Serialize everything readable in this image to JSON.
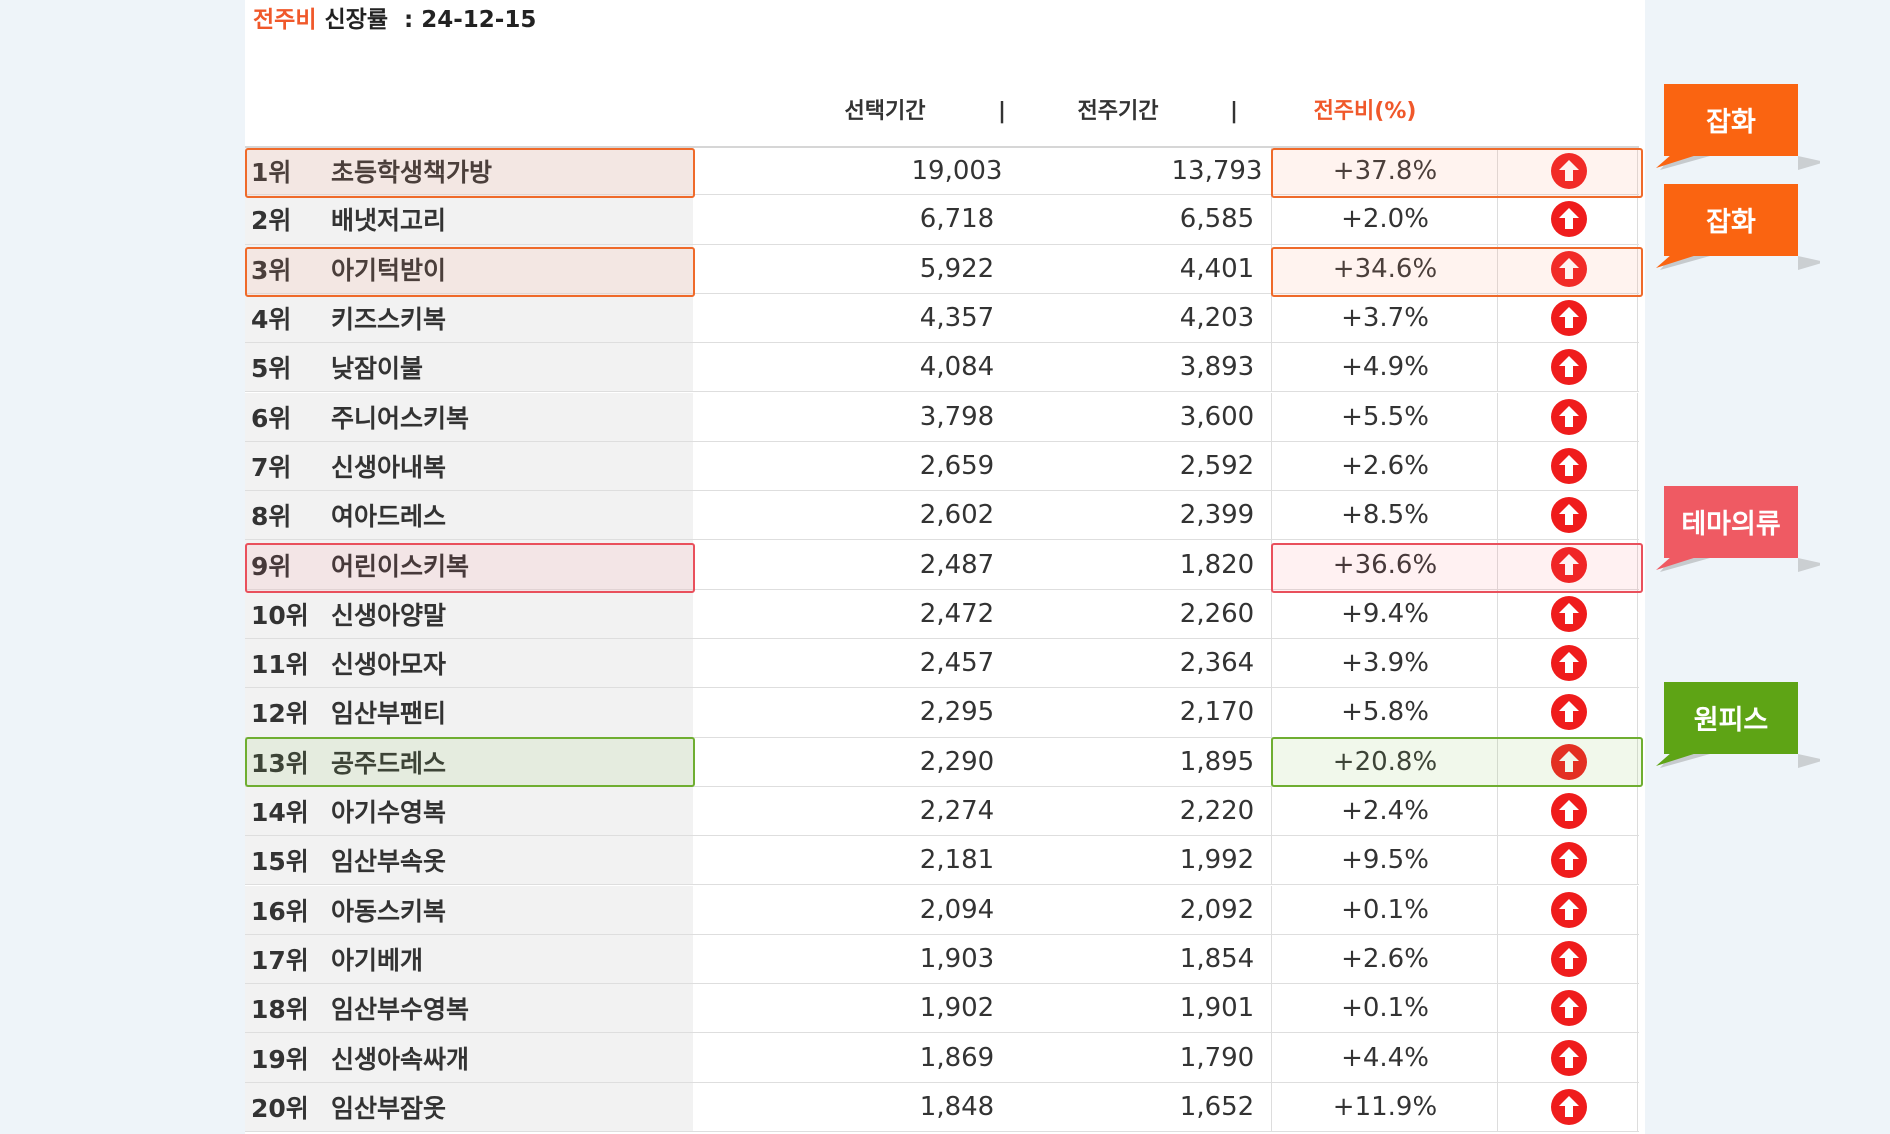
{
  "title": {
    "prefix": "전주비",
    "middle": "신장률",
    "separator": ":",
    "date": "24-12-15"
  },
  "headers": {
    "selected": "선택기간",
    "previous": "전주기간",
    "ratio": "전주비(%)",
    "divider": "|"
  },
  "colors": {
    "accent": "#f0582a",
    "up_icon": "#ef1c1c",
    "tag_orange": "#fa6411",
    "tag_pink": "#ef5a63",
    "tag_green": "#5ea415"
  },
  "rows": [
    {
      "rank": "1위",
      "name": "초등학생책가방",
      "selected": "19,003",
      "previous": "13,793",
      "ratio": "+37.8%",
      "icon": "up-arrow-icon"
    },
    {
      "rank": "2위",
      "name": "배냇저고리",
      "selected": "6,718",
      "previous": "6,585",
      "ratio": "+2.0%",
      "icon": "up-arrow-icon"
    },
    {
      "rank": "3위",
      "name": "아기턱받이",
      "selected": "5,922",
      "previous": "4,401",
      "ratio": "+34.6%",
      "icon": "up-arrow-icon"
    },
    {
      "rank": "4위",
      "name": "키즈스키복",
      "selected": "4,357",
      "previous": "4,203",
      "ratio": "+3.7%",
      "icon": "up-arrow-icon"
    },
    {
      "rank": "5위",
      "name": "낮잠이불",
      "selected": "4,084",
      "previous": "3,893",
      "ratio": "+4.9%",
      "icon": "up-arrow-icon"
    },
    {
      "rank": "6위",
      "name": "주니어스키복",
      "selected": "3,798",
      "previous": "3,600",
      "ratio": "+5.5%",
      "icon": "up-arrow-icon"
    },
    {
      "rank": "7위",
      "name": "신생아내복",
      "selected": "2,659",
      "previous": "2,592",
      "ratio": "+2.6%",
      "icon": "up-arrow-icon"
    },
    {
      "rank": "8위",
      "name": "여아드레스",
      "selected": "2,602",
      "previous": "2,399",
      "ratio": "+8.5%",
      "icon": "up-arrow-icon"
    },
    {
      "rank": "9위",
      "name": "어린이스키복",
      "selected": "2,487",
      "previous": "1,820",
      "ratio": "+36.6%",
      "icon": "up-arrow-icon"
    },
    {
      "rank": "10위",
      "name": "신생아양말",
      "selected": "2,472",
      "previous": "2,260",
      "ratio": "+9.4%",
      "icon": "up-arrow-icon"
    },
    {
      "rank": "11위",
      "name": "신생아모자",
      "selected": "2,457",
      "previous": "2,364",
      "ratio": "+3.9%",
      "icon": "up-arrow-icon"
    },
    {
      "rank": "12위",
      "name": "임산부팬티",
      "selected": "2,295",
      "previous": "2,170",
      "ratio": "+5.8%",
      "icon": "up-arrow-icon"
    },
    {
      "rank": "13위",
      "name": "공주드레스",
      "selected": "2,290",
      "previous": "1,895",
      "ratio": "+20.8%",
      "icon": "up-arrow-icon"
    },
    {
      "rank": "14위",
      "name": "아기수영복",
      "selected": "2,274",
      "previous": "2,220",
      "ratio": "+2.4%",
      "icon": "up-arrow-icon"
    },
    {
      "rank": "15위",
      "name": "임산부속옷",
      "selected": "2,181",
      "previous": "1,992",
      "ratio": "+9.5%",
      "icon": "up-arrow-icon"
    },
    {
      "rank": "16위",
      "name": "아동스키복",
      "selected": "2,094",
      "previous": "2,092",
      "ratio": "+0.1%",
      "icon": "up-arrow-icon"
    },
    {
      "rank": "17위",
      "name": "아기베개",
      "selected": "1,903",
      "previous": "1,854",
      "ratio": "+2.6%",
      "icon": "up-arrow-icon"
    },
    {
      "rank": "18위",
      "name": "임산부수영복",
      "selected": "1,902",
      "previous": "1,901",
      "ratio": "+0.1%",
      "icon": "up-arrow-icon"
    },
    {
      "rank": "19위",
      "name": "신생아속싸개",
      "selected": "1,869",
      "previous": "1,790",
      "ratio": "+4.4%",
      "icon": "up-arrow-icon"
    },
    {
      "rank": "20위",
      "name": "임산부잠옷",
      "selected": "1,848",
      "previous": "1,652",
      "ratio": "+11.9%",
      "icon": "up-arrow-icon"
    }
  ],
  "callouts": [
    {
      "label": "잡화",
      "color": "#fa6411"
    },
    {
      "label": "잡화",
      "color": "#fa6411"
    },
    {
      "label": "테마의류",
      "color": "#ef5a63"
    },
    {
      "label": "원피스",
      "color": "#5ea415"
    }
  ]
}
